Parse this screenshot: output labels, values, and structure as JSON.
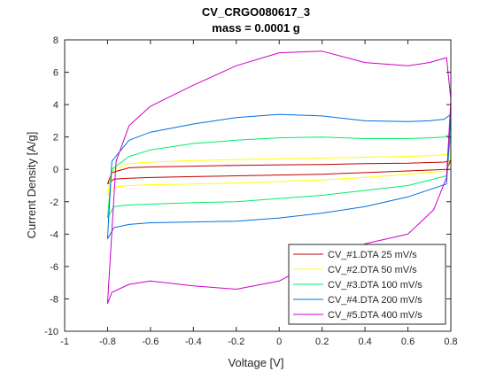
{
  "chart_data": {
    "type": "line",
    "title": "CV_CRGO080617_3",
    "subtitle": "mass = 0.0001 g",
    "xlabel": "Voltage [V]",
    "ylabel": "Current Density [A/g]",
    "xlim": [
      -1,
      0.8
    ],
    "ylim": [
      -10,
      8
    ],
    "xticks": [
      -1,
      -0.8,
      -0.6,
      -0.4,
      -0.2,
      0,
      0.2,
      0.4,
      0.6,
      0.8
    ],
    "yticks": [
      -10,
      -8,
      -6,
      -4,
      -2,
      0,
      2,
      4,
      6,
      8
    ],
    "xtick_labels": [
      "-1",
      "-0.8",
      "-0.6",
      "-0.4",
      "-0.2",
      "0",
      "0.2",
      "0.4",
      "0.6",
      "0.8"
    ],
    "ytick_labels": [
      "-10",
      "-8",
      "-6",
      "-4",
      "-2",
      "0",
      "2",
      "4",
      "6",
      "8"
    ],
    "grid": false,
    "legend_position": "bottom-right",
    "series": [
      {
        "name": "CV_#1.DTA 25 mV/s",
        "color": "#c00000",
        "x": [
          -0.8,
          -0.77,
          -0.7,
          -0.6,
          -0.4,
          -0.2,
          0,
          0.2,
          0.4,
          0.6,
          0.78,
          0.8,
          0.77,
          0.7,
          0.6,
          0.4,
          0.2,
          0,
          -0.2,
          -0.4,
          -0.6,
          -0.7,
          -0.78,
          -0.8
        ],
        "y": [
          -0.9,
          -0.6,
          -0.55,
          -0.5,
          -0.45,
          -0.4,
          -0.35,
          -0.3,
          -0.2,
          -0.1,
          0.0,
          0.55,
          0.45,
          0.42,
          0.38,
          0.35,
          0.3,
          0.28,
          0.25,
          0.2,
          0.15,
          0.1,
          -0.2,
          -0.9
        ]
      },
      {
        "name": "CV_#2.DTA 50 mV/s",
        "color": "#ffff00",
        "x": [
          -0.8,
          -0.77,
          -0.7,
          -0.6,
          -0.4,
          -0.2,
          0,
          0.2,
          0.4,
          0.6,
          0.78,
          0.8,
          0.77,
          0.7,
          0.6,
          0.4,
          0.2,
          0,
          -0.2,
          -0.4,
          -0.6,
          -0.7,
          -0.78,
          -0.8
        ],
        "y": [
          -1.6,
          -1.1,
          -1.0,
          -0.95,
          -0.9,
          -0.85,
          -0.75,
          -0.65,
          -0.5,
          -0.3,
          -0.1,
          1.0,
          0.9,
          0.85,
          0.8,
          0.75,
          0.7,
          0.65,
          0.6,
          0.55,
          0.45,
          0.35,
          -0.1,
          -1.6
        ]
      },
      {
        "name": "CV_#3.DTA 100 mV/s",
        "color": "#00ee66",
        "x": [
          -0.8,
          -0.77,
          -0.7,
          -0.6,
          -0.4,
          -0.2,
          0,
          0.2,
          0.4,
          0.6,
          0.78,
          0.8,
          0.77,
          0.7,
          0.6,
          0.4,
          0.2,
          0,
          -0.2,
          -0.4,
          -0.6,
          -0.7,
          -0.78,
          -0.8
        ],
        "y": [
          -3.0,
          -2.3,
          -2.2,
          -2.15,
          -2.05,
          -2.0,
          -1.8,
          -1.6,
          -1.3,
          -1.0,
          -0.4,
          2.2,
          2.0,
          1.95,
          1.9,
          1.9,
          2.0,
          1.95,
          1.8,
          1.6,
          1.2,
          0.8,
          0.0,
          -3.0
        ]
      },
      {
        "name": "CV_#4.DTA 200 mV/s",
        "color": "#0070e0",
        "x": [
          -0.8,
          -0.77,
          -0.7,
          -0.6,
          -0.4,
          -0.2,
          0,
          0.2,
          0.4,
          0.6,
          0.78,
          0.8,
          0.77,
          0.7,
          0.6,
          0.4,
          0.2,
          0,
          -0.2,
          -0.4,
          -0.6,
          -0.7,
          -0.78,
          -0.8
        ],
        "y": [
          -4.3,
          -3.6,
          -3.4,
          -3.3,
          -3.25,
          -3.2,
          -3.0,
          -2.7,
          -2.3,
          -1.7,
          -0.9,
          3.4,
          3.1,
          3.0,
          2.95,
          3.0,
          3.3,
          3.4,
          3.2,
          2.8,
          2.3,
          1.8,
          0.5,
          -4.3
        ]
      },
      {
        "name": "CV_#5.DTA 400 mV/s",
        "color": "#cc00cc",
        "x": [
          -0.8,
          -0.78,
          -0.7,
          -0.6,
          -0.4,
          -0.2,
          0,
          0.2,
          0.4,
          0.6,
          0.72,
          0.78,
          0.8,
          0.78,
          0.7,
          0.6,
          0.4,
          0.2,
          0,
          -0.2,
          -0.4,
          -0.6,
          -0.7,
          -0.76,
          -0.8
        ],
        "y": [
          -8.3,
          -7.6,
          -7.1,
          -6.9,
          -7.2,
          -7.4,
          -6.9,
          -5.5,
          -4.6,
          -4.0,
          -2.5,
          -0.5,
          4.3,
          6.9,
          6.6,
          6.4,
          6.6,
          7.3,
          7.2,
          6.4,
          5.2,
          3.9,
          2.7,
          0.5,
          -8.3
        ]
      }
    ]
  }
}
